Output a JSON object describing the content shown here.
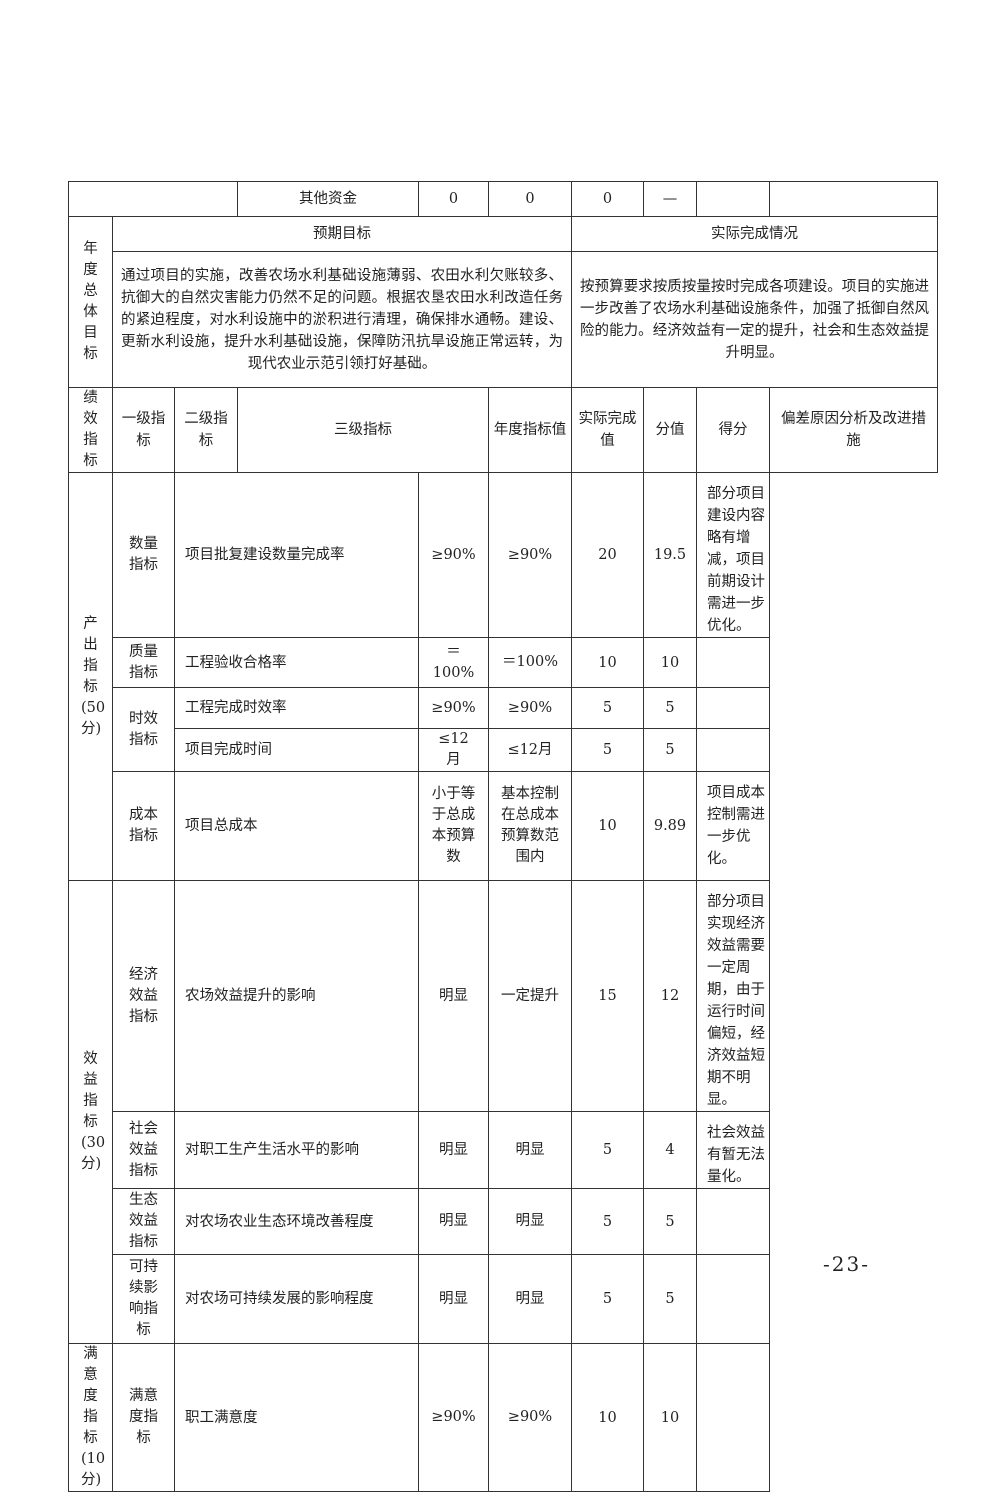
{
  "top_row": {
    "label": "其他资金",
    "v1": "0",
    "v2": "0",
    "v3": "0",
    "v4": "—"
  },
  "goals": {
    "section": "年度总体目标",
    "expected_header": "预期目标",
    "actual_header": "实际完成情况",
    "expected": "通过项目的实施，改善农场水利基础设施薄弱、农田水利欠账较多、抗御大的自然灾害能力仍然不足的问题。根据农垦农田水利改造任务的紧迫程度，对水利设施中的淤积进行清理，确保排水通畅。建设、更新水利设施，提升水利基础设施，保障防汛抗旱设施正常运转，为现代农业示范引领打好基础。",
    "actual": "按预算要求按质按量按时完成各项建设。项目的实施进一步改善了农场水利基础设施条件，加强了抵御自然风险的能力。经济效益有一定的提升，社会和生态效益提升明显。"
  },
  "perf": {
    "section": "绩效指标",
    "headers": [
      "一级指标",
      "二级指标",
      "三级指标",
      "年度指标值",
      "实际完成值",
      "分值",
      "得分",
      "偏差原因分析及改进措施"
    ],
    "groups": {
      "output": "产出指标(50分)",
      "benefit": "效益指标(30分)",
      "satisfaction": "满意度指标(10分)"
    },
    "rows": [
      {
        "l2": "数量指标",
        "l3": "项目批复建设数量完成率",
        "target": "≥90%",
        "actual": "≥90%",
        "score": "20",
        "got": "19.5",
        "note": "部分项目建设内容略有增减，项目前期设计需进一步优化。"
      },
      {
        "l2": "质量指标",
        "l3": "工程验收合格率",
        "target": "＝100%",
        "actual": "＝100%",
        "score": "10",
        "got": "10",
        "note": ""
      },
      {
        "l2": "时效指标",
        "l3": "工程完成时效率",
        "target": "≥90%",
        "actual": "≥90%",
        "score": "5",
        "got": "5",
        "note": ""
      },
      {
        "l2": "",
        "l3": "项目完成时间",
        "target": "≤12月",
        "actual": "≤12月",
        "score": "5",
        "got": "5",
        "note": ""
      },
      {
        "l2": "成本指标",
        "l3": "项目总成本",
        "target": "小于等于总成本预算数",
        "actual": "基本控制在总成本预算数范围内",
        "score": "10",
        "got": "9.89",
        "note": "项目成本控制需进一步优化。"
      },
      {
        "l2": "经济效益指标",
        "l3": "农场效益提升的影响",
        "target": "明显",
        "actual": "一定提升",
        "score": "15",
        "got": "12",
        "note": "部分项目实现经济效益需要一定周期，由于运行时间偏短，经济效益短期不明显。"
      },
      {
        "l2": "社会效益指标",
        "l3": "对职工生产生活水平的影响",
        "target": "明显",
        "actual": "明显",
        "score": "5",
        "got": "4",
        "note": "社会效益有暂无法量化。"
      },
      {
        "l2": "生态效益指标",
        "l3": "对农场农业生态环境改善程度",
        "target": "明显",
        "actual": "明显",
        "score": "5",
        "got": "5",
        "note": ""
      },
      {
        "l2": "可持续影响指标",
        "l3": "对农场可持续发展的影响程度",
        "target": "明显",
        "actual": "明显",
        "score": "5",
        "got": "5",
        "note": ""
      },
      {
        "l2": "满意度指标",
        "l3": "职工满意度",
        "target": "≥90%",
        "actual": "≥90%",
        "score": "10",
        "got": "10",
        "note": ""
      }
    ]
  },
  "page_number": "-23-"
}
